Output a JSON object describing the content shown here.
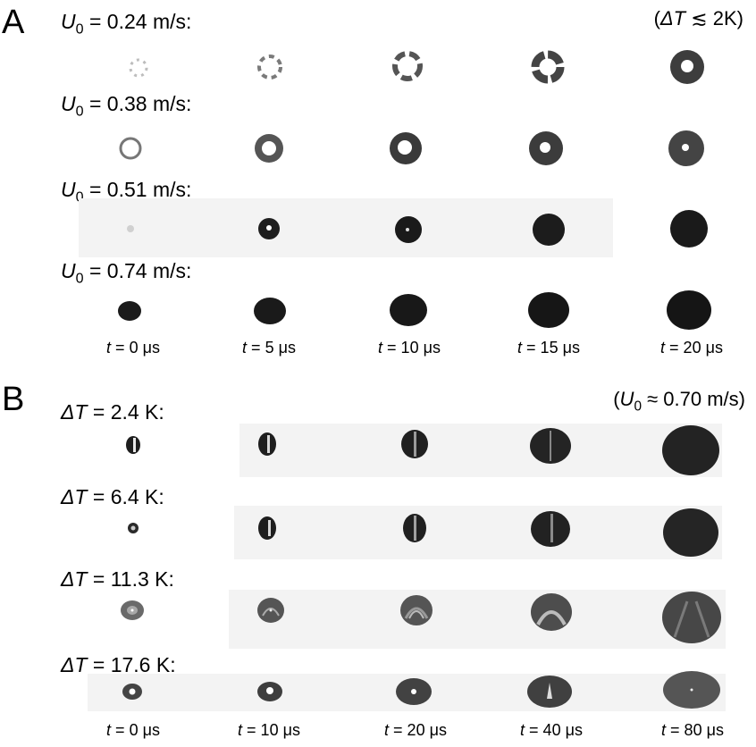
{
  "panel_a": {
    "label": "A",
    "condition": {
      "prefix": "(",
      "symbol": "ΔT",
      "rest": " ≲ 2K)"
    },
    "rows": [
      {
        "var": "U",
        "sub": "0",
        "text": " = 0.24 m/s:"
      },
      {
        "var": "U",
        "sub": "0",
        "text": " = 0.38 m/s:"
      },
      {
        "var": "U",
        "sub": "0",
        "text": " = 0.51 m/s:"
      },
      {
        "var": "U",
        "sub": "0",
        "text": " = 0.74 m/s:"
      }
    ],
    "times": [
      {
        "var": "t",
        "text": " = 0 μs"
      },
      {
        "var": "t",
        "text": " = 5 μs"
      },
      {
        "var": "t",
        "text": " = 10 μs"
      },
      {
        "var": "t",
        "text": " = 15 μs"
      },
      {
        "var": "t",
        "text": " = 20 μs"
      }
    ]
  },
  "panel_b": {
    "label": "B",
    "condition": {
      "prefix": "(",
      "var": "U",
      "sub": "0",
      "rest": " ≈ 0.70 m/s)"
    },
    "rows": [
      {
        "symbol": "ΔT",
        "text": " = 2.4 K:"
      },
      {
        "symbol": "ΔT",
        "text": " = 6.4 K:"
      },
      {
        "symbol": "ΔT",
        "text": " = 11.3 K:"
      },
      {
        "symbol": "ΔT",
        "text": " = 17.6 K:"
      }
    ],
    "times": [
      {
        "var": "t",
        "text": " = 0 μs"
      },
      {
        "var": "t",
        "text": " = 10 μs"
      },
      {
        "var": "t",
        "text": " = 20 μs"
      },
      {
        "var": "t",
        "text": " = 40 μs"
      },
      {
        "var": "t",
        "text": " = 80 μs"
      }
    ]
  },
  "colors": {
    "dark": "#1f1f1f",
    "mid": "#6a6a6a",
    "light": "#bdbdbd",
    "strip_bg": "#f3f3f3"
  }
}
